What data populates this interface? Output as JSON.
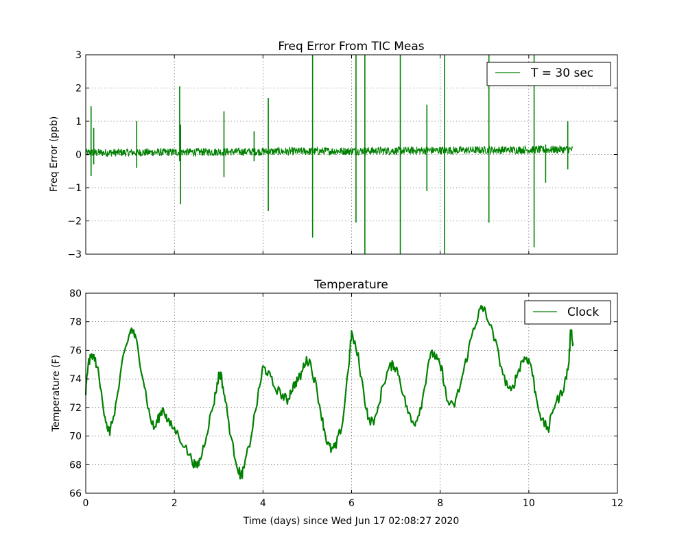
{
  "figure": {
    "xlabel": "Time (days) since Wed Jun 17 02:08:27 2020"
  },
  "chart_data": [
    {
      "type": "line",
      "title": "Freq Error From TIC Meas",
      "xlabel": "",
      "ylabel": "Freq Error (ppb)",
      "xlim": [
        0,
        12
      ],
      "ylim": [
        -3,
        3
      ],
      "xticks": [
        "0",
        "2",
        "4",
        "6",
        "8",
        "10",
        "12"
      ],
      "yticks": [
        "3",
        "2",
        "1",
        "0",
        "−1",
        "−2",
        "−3"
      ],
      "grid": true,
      "legend_position": "top-right",
      "color": "#008000",
      "series": [
        {
          "name": "T = 30 sec",
          "baseline": {
            "x": [
              0,
              11.0
            ],
            "y": [
              0.05,
              0.15
            ],
            "noise_amplitude": 0.12
          },
          "spikes": [
            {
              "x": 0.12,
              "ymin": -0.65,
              "ymax": 1.45
            },
            {
              "x": 0.18,
              "ymin": -0.3,
              "ymax": 0.8
            },
            {
              "x": 1.15,
              "ymin": -0.4,
              "ymax": 1.0
            },
            {
              "x": 2.12,
              "ymin": -0.2,
              "ymax": 2.05
            },
            {
              "x": 2.14,
              "ymin": -1.5,
              "ymax": 0.9
            },
            {
              "x": 3.12,
              "ymin": -0.68,
              "ymax": 1.3
            },
            {
              "x": 3.8,
              "ymin": -0.2,
              "ymax": 0.7
            },
            {
              "x": 4.12,
              "ymin": -1.7,
              "ymax": 1.7
            },
            {
              "x": 5.12,
              "ymin": -2.5,
              "ymax": 3.0
            },
            {
              "x": 6.1,
              "ymin": -2.05,
              "ymax": 3.0
            },
            {
              "x": 6.3,
              "ymin": -3.0,
              "ymax": 3.0
            },
            {
              "x": 7.1,
              "ymin": -3.0,
              "ymax": 3.0
            },
            {
              "x": 7.7,
              "ymin": -1.1,
              "ymax": 1.5
            },
            {
              "x": 8.1,
              "ymin": -3.0,
              "ymax": 3.0
            },
            {
              "x": 9.1,
              "ymin": -2.05,
              "ymax": 3.0
            },
            {
              "x": 10.12,
              "ymin": -2.8,
              "ymax": 3.0
            },
            {
              "x": 10.38,
              "ymin": -0.85,
              "ymax": 0.3
            },
            {
              "x": 10.88,
              "ymin": -0.45,
              "ymax": 1.0
            }
          ]
        }
      ]
    },
    {
      "type": "line",
      "title": "Temperature",
      "xlabel": "Time (days) since Wed Jun 17 02:08:27 2020",
      "ylabel": "Temperature (F)",
      "xlim": [
        0,
        12
      ],
      "ylim": [
        66,
        80
      ],
      "xticks": [
        "0",
        "2",
        "4",
        "6",
        "8",
        "10",
        "12"
      ],
      "yticks": [
        "80",
        "78",
        "76",
        "74",
        "72",
        "70",
        "68",
        "66"
      ],
      "grid": true,
      "legend_position": "top-right",
      "color": "#008000",
      "series": [
        {
          "name": "Clock",
          "noise_amplitude": 0.35,
          "x": [
            0,
            0.05,
            0.15,
            0.25,
            0.4,
            0.5,
            0.55,
            0.7,
            0.85,
            1.0,
            1.05,
            1.15,
            1.3,
            1.45,
            1.55,
            1.65,
            1.75,
            1.85,
            2.0,
            2.2,
            2.4,
            2.5,
            2.6,
            2.75,
            2.9,
            3.0,
            3.05,
            3.15,
            3.3,
            3.45,
            3.5,
            3.55,
            3.7,
            3.9,
            4.0,
            4.1,
            4.25,
            4.45,
            4.55,
            4.65,
            4.75,
            4.85,
            4.95,
            5.05,
            5.2,
            5.35,
            5.45,
            5.55,
            5.65,
            5.8,
            5.95,
            6.0,
            6.15,
            6.3,
            6.4,
            6.55,
            6.7,
            6.85,
            6.95,
            7.05,
            7.2,
            7.35,
            7.45,
            7.6,
            7.75,
            7.85,
            7.95,
            8.05,
            8.15,
            8.3,
            8.45,
            8.6,
            8.75,
            8.9,
            8.95,
            9.05,
            9.25,
            9.45,
            9.6,
            9.7,
            9.85,
            9.95,
            10.05,
            10.15,
            10.3,
            10.45,
            10.55,
            10.7,
            10.8,
            10.9,
            10.95,
            11.0
          ],
          "y": [
            73.0,
            75.0,
            75.7,
            75.0,
            72.0,
            70.5,
            70.3,
            72.5,
            75.5,
            77.3,
            77.5,
            76.5,
            74.0,
            71.3,
            70.5,
            71.3,
            72.0,
            71.0,
            70.5,
            69.5,
            68.3,
            67.8,
            68.5,
            70.5,
            72.5,
            74.2,
            74.3,
            72.5,
            69.5,
            67.6,
            67.2,
            67.5,
            69.5,
            73.0,
            74.8,
            74.5,
            73.5,
            72.8,
            72.5,
            73.3,
            73.8,
            74.2,
            75.2,
            75.3,
            73.5,
            71.0,
            69.5,
            69.0,
            69.3,
            71.0,
            75.5,
            77.2,
            75.5,
            72.5,
            71.0,
            71.2,
            73.5,
            74.8,
            75.0,
            74.5,
            72.5,
            71.0,
            71.0,
            72.5,
            75.5,
            75.8,
            75.2,
            74.5,
            72.5,
            72.0,
            73.5,
            75.5,
            77.5,
            78.8,
            79.0,
            78.5,
            76.5,
            74.0,
            73.0,
            74.0,
            75.3,
            75.5,
            75.0,
            73.0,
            71.0,
            70.5,
            72.0,
            72.8,
            73.5,
            75.0,
            77.5,
            76.5
          ]
        }
      ]
    }
  ]
}
